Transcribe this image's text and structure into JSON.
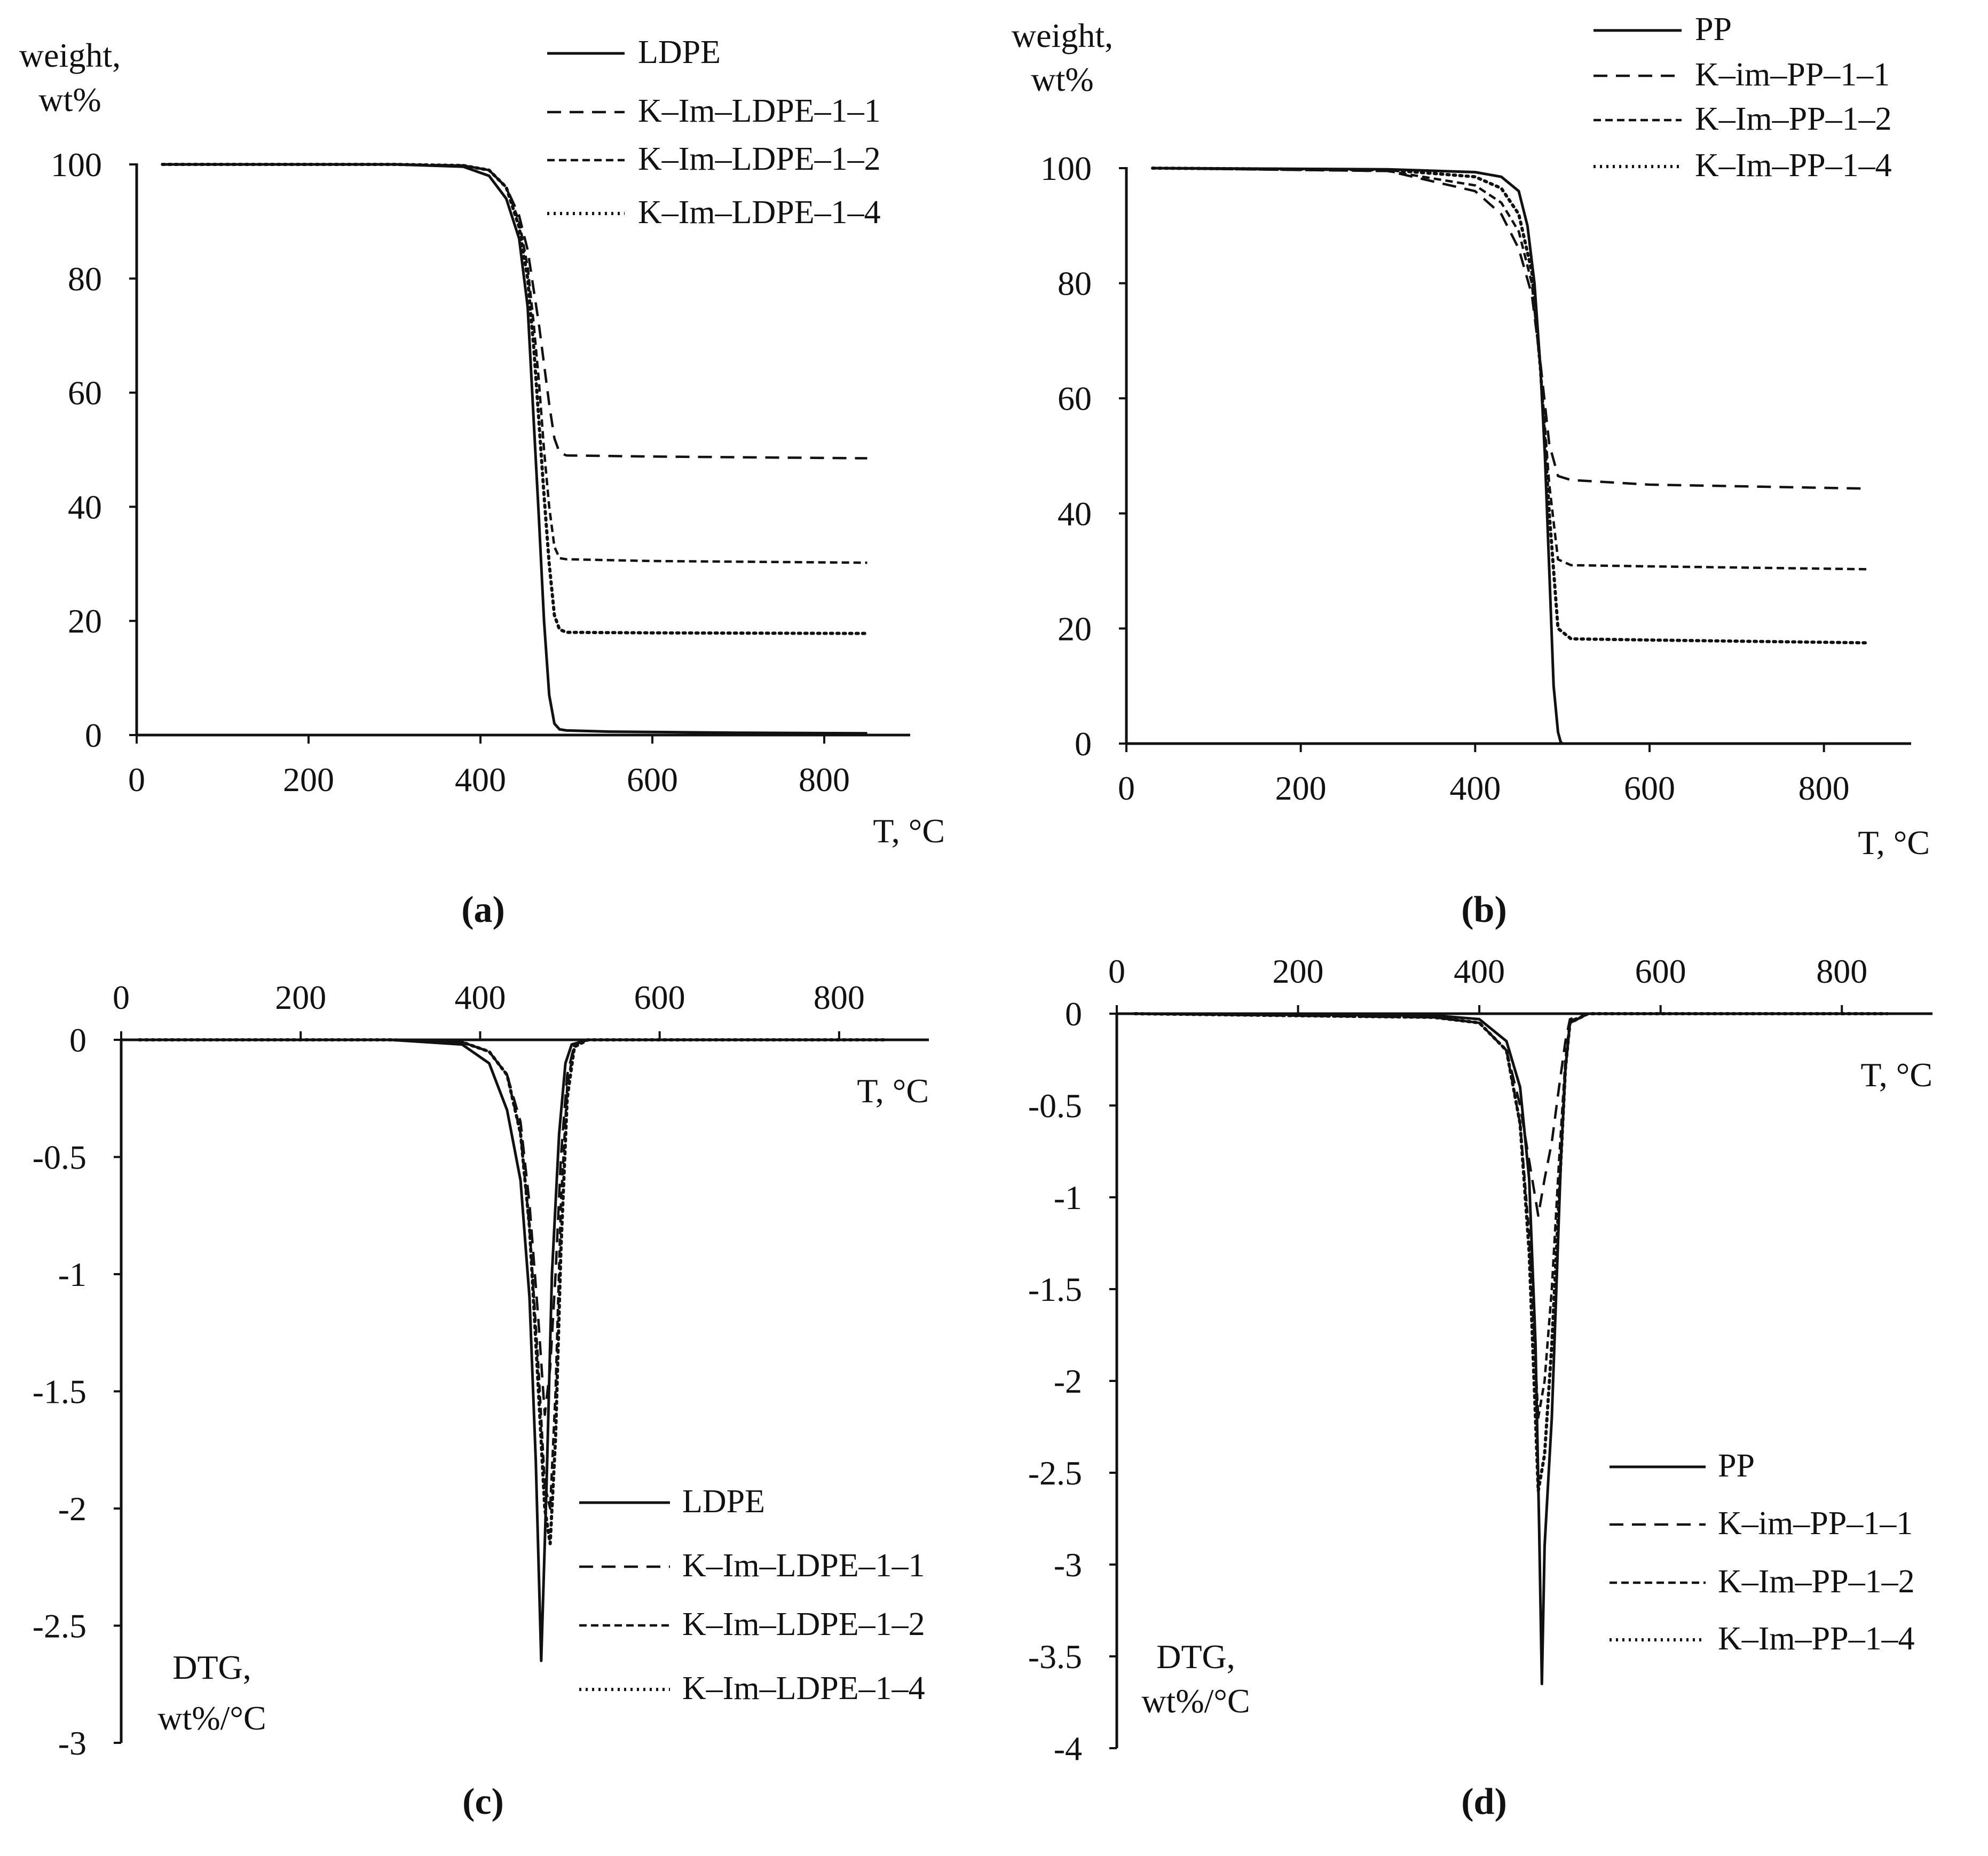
{
  "figure": {
    "captions": [
      "(a)",
      "(b)",
      "(c)",
      "(d)"
    ]
  },
  "chart_data": [
    {
      "id": "a",
      "type": "line",
      "caption": "(a)",
      "title": "",
      "xlabel": "T, °C",
      "ylabel": [
        "weight,",
        "wt%"
      ],
      "xlim": [
        0,
        900
      ],
      "ylim": [
        0,
        100
      ],
      "xticks": [
        0,
        200,
        400,
        600,
        800
      ],
      "yticks": [
        0,
        20,
        40,
        60,
        80,
        100
      ],
      "xtick_labels": [
        "0",
        "200",
        "400",
        "600",
        "800"
      ],
      "ytick_labels": [
        "0",
        "20",
        "40",
        "60",
        "80",
        "100"
      ],
      "grid": false,
      "legend_position": "top-right",
      "series": [
        {
          "name": "LDPE",
          "style": "solid",
          "x": [
            30,
            300,
            380,
            410,
            430,
            445,
            455,
            462,
            468,
            474,
            480,
            486,
            492,
            500,
            550,
            700,
            850
          ],
          "y": [
            100,
            100,
            99.6,
            98,
            94,
            87,
            75,
            55,
            38,
            20,
            7,
            2,
            1,
            0.8,
            0.6,
            0.4,
            0.3
          ]
        },
        {
          "name": "K–Im–LDPE–1–1",
          "style": "dashed",
          "x": [
            30,
            300,
            380,
            410,
            430,
            445,
            455,
            462,
            468,
            474,
            480,
            486,
            492,
            500,
            600,
            850
          ],
          "y": [
            100,
            100,
            99.8,
            99,
            96,
            91,
            85,
            78,
            72,
            65,
            58,
            52,
            49.5,
            49,
            48.8,
            48.5
          ]
        },
        {
          "name": "K–Im–LDPE–1–2",
          "style": "dashed-fine",
          "x": [
            30,
            300,
            380,
            410,
            430,
            445,
            455,
            462,
            468,
            474,
            480,
            486,
            492,
            500,
            600,
            850
          ],
          "y": [
            100,
            100,
            99.8,
            99,
            96,
            90,
            82,
            72,
            62,
            50,
            40,
            33,
            31,
            30.8,
            30.5,
            30.2
          ]
        },
        {
          "name": "K–Im–LDPE–1–4",
          "style": "dotted",
          "x": [
            30,
            300,
            380,
            410,
            430,
            445,
            455,
            462,
            468,
            474,
            480,
            486,
            492,
            500,
            600,
            850
          ],
          "y": [
            100,
            100,
            99.8,
            99,
            96,
            89,
            80,
            68,
            55,
            42,
            30,
            21,
            18.5,
            18,
            17.9,
            17.8
          ]
        }
      ]
    },
    {
      "id": "b",
      "type": "line",
      "caption": "(b)",
      "title": "",
      "xlabel": "T, °C",
      "ylabel": [
        "weight,",
        "wt%"
      ],
      "xlim": [
        0,
        900
      ],
      "ylim": [
        0,
        100
      ],
      "xticks": [
        0,
        200,
        400,
        600,
        800
      ],
      "yticks": [
        0,
        20,
        40,
        60,
        80,
        100
      ],
      "xtick_labels": [
        "0",
        "200",
        "400",
        "600",
        "800"
      ],
      "ytick_labels": [
        "0",
        "20",
        "40",
        "60",
        "80",
        "100"
      ],
      "grid": false,
      "legend_position": "top-right",
      "series": [
        {
          "name": "PP",
          "style": "solid",
          "x": [
            30,
            300,
            400,
            430,
            450,
            460,
            468,
            475,
            480,
            485,
            490,
            495,
            498,
            500,
            850
          ],
          "y": [
            100,
            99.8,
            99.3,
            98.5,
            96,
            90,
            80,
            65,
            50,
            30,
            10,
            2,
            0.3,
            0,
            0
          ]
        },
        {
          "name": "K–im–PP–1–1",
          "style": "dashed",
          "x": [
            30,
            300,
            400,
            430,
            450,
            465,
            475,
            485,
            495,
            510,
            600,
            850
          ],
          "y": [
            100,
            99.5,
            96,
            92,
            86,
            78,
            66,
            52,
            46.5,
            45.8,
            45,
            44.3
          ]
        },
        {
          "name": "K–Im–PP–1–2",
          "style": "dashed-fine",
          "x": [
            30,
            300,
            400,
            430,
            450,
            465,
            475,
            485,
            495,
            510,
            600,
            850
          ],
          "y": [
            100,
            99.5,
            97,
            94,
            89,
            80,
            65,
            45,
            32,
            31,
            30.8,
            30.3
          ]
        },
        {
          "name": "K–Im–PP–1–4",
          "style": "dotted",
          "x": [
            30,
            300,
            400,
            430,
            450,
            465,
            475,
            485,
            495,
            510,
            600,
            850
          ],
          "y": [
            100,
            99.7,
            98.5,
            96.5,
            92,
            82,
            65,
            40,
            20,
            18.2,
            18,
            17.5
          ]
        }
      ]
    },
    {
      "id": "c",
      "type": "line",
      "caption": "(c)",
      "title": "",
      "xlabel": "T, °C",
      "ylabel": [
        "DTG,",
        "wt%/°C"
      ],
      "xlim": [
        0,
        900
      ],
      "ylim": [
        -3,
        0
      ],
      "xticks": [
        0,
        200,
        400,
        600,
        800
      ],
      "yticks": [
        0,
        -0.5,
        -1,
        -1.5,
        -2,
        -2.5,
        -3
      ],
      "xtick_labels": [
        "0",
        "200",
        "400",
        "600",
        "800"
      ],
      "ytick_labels": [
        "0",
        "-0.5",
        "-1",
        "-1.5",
        "-2",
        "-2.5",
        "-3"
      ],
      "grid": false,
      "legend_position": "bottom-right",
      "series": [
        {
          "name": "LDPE",
          "style": "solid",
          "x": [
            20,
            300,
            380,
            410,
            430,
            445,
            455,
            462,
            468,
            474,
            480,
            488,
            495,
            502,
            520,
            850
          ],
          "y": [
            0,
            0,
            -0.02,
            -0.1,
            -0.3,
            -0.6,
            -1.1,
            -1.8,
            -2.65,
            -1.9,
            -1.0,
            -0.4,
            -0.1,
            -0.02,
            0,
            0
          ]
        },
        {
          "name": "K–Im–LDPE–1–1",
          "style": "dashed",
          "x": [
            20,
            300,
            380,
            410,
            430,
            445,
            455,
            465,
            472,
            478,
            484,
            490,
            497,
            505,
            520,
            850
          ],
          "y": [
            0,
            0,
            -0.01,
            -0.05,
            -0.15,
            -0.35,
            -0.7,
            -1.2,
            -1.6,
            -1.4,
            -1.0,
            -0.5,
            -0.15,
            -0.02,
            0,
            0
          ]
        },
        {
          "name": "K–Im–LDPE–1–2",
          "style": "dashed-fine",
          "x": [
            20,
            300,
            380,
            410,
            430,
            445,
            455,
            465,
            472,
            478,
            484,
            490,
            497,
            505,
            520,
            850
          ],
          "y": [
            0,
            0,
            -0.01,
            -0.05,
            -0.15,
            -0.4,
            -0.8,
            -1.4,
            -1.9,
            -2.0,
            -1.5,
            -0.7,
            -0.2,
            -0.02,
            0,
            0
          ]
        },
        {
          "name": "K–Im–LDPE–1–4",
          "style": "dotted",
          "x": [
            20,
            300,
            380,
            410,
            430,
            445,
            455,
            465,
            472,
            478,
            484,
            490,
            497,
            505,
            520,
            850
          ],
          "y": [
            0,
            0,
            -0.01,
            -0.05,
            -0.15,
            -0.4,
            -0.8,
            -1.5,
            -2.0,
            -2.15,
            -1.7,
            -0.9,
            -0.25,
            -0.03,
            0,
            0
          ]
        }
      ]
    },
    {
      "id": "d",
      "type": "line",
      "caption": "(d)",
      "title": "",
      "xlabel": "T, °C",
      "ylabel": [
        "DTG,",
        "wt%/°C"
      ],
      "xlim": [
        0,
        900
      ],
      "ylim": [
        -4,
        0
      ],
      "xticks": [
        0,
        200,
        400,
        600,
        800
      ],
      "yticks": [
        0,
        -0.5,
        -1,
        -1.5,
        -2,
        -2.5,
        -3,
        -3.5,
        -4
      ],
      "xtick_labels": [
        "0",
        "200",
        "400",
        "600",
        "800"
      ],
      "ytick_labels": [
        "0",
        "-0.5",
        "-1",
        "-1.5",
        "-2",
        "-2.5",
        "-3",
        "-3.5",
        "-4"
      ],
      "grid": false,
      "legend_position": "bottom-right",
      "series": [
        {
          "name": "PP",
          "style": "solid",
          "x": [
            20,
            350,
            400,
            430,
            445,
            455,
            462,
            466,
            469,
            472,
            476,
            480,
            485,
            490,
            495,
            500,
            520,
            850
          ],
          "y": [
            0,
            -0.01,
            -0.03,
            -0.15,
            -0.4,
            -0.9,
            -1.8,
            -2.8,
            -3.65,
            -2.9,
            -2.55,
            -2.2,
            -1.5,
            -0.8,
            -0.3,
            -0.05,
            0,
            0
          ]
        },
        {
          "name": "K–im–PP–1–1",
          "style": "dashed",
          "x": [
            20,
            350,
            400,
            430,
            445,
            455,
            465,
            472,
            480,
            488,
            495,
            500,
            520,
            850
          ],
          "y": [
            0,
            -0.02,
            -0.05,
            -0.2,
            -0.5,
            -0.8,
            -1.1,
            -0.9,
            -0.7,
            -0.4,
            -0.15,
            -0.03,
            0,
            0
          ]
        },
        {
          "name": "K–Im–PP–1–2",
          "style": "dashed-fine",
          "x": [
            20,
            350,
            400,
            430,
            445,
            455,
            465,
            472,
            480,
            488,
            495,
            500,
            520,
            850
          ],
          "y": [
            0,
            -0.02,
            -0.05,
            -0.2,
            -0.6,
            -1.2,
            -2.2,
            -2.0,
            -1.5,
            -0.8,
            -0.25,
            -0.04,
            0,
            0
          ]
        },
        {
          "name": "K–Im–PP–1–4",
          "style": "dotted",
          "x": [
            20,
            350,
            400,
            430,
            445,
            455,
            465,
            472,
            480,
            488,
            495,
            500,
            520,
            850
          ],
          "y": [
            0,
            -0.02,
            -0.05,
            -0.2,
            -0.6,
            -1.3,
            -2.6,
            -2.4,
            -1.8,
            -1.0,
            -0.3,
            -0.05,
            0,
            0
          ]
        }
      ]
    }
  ]
}
